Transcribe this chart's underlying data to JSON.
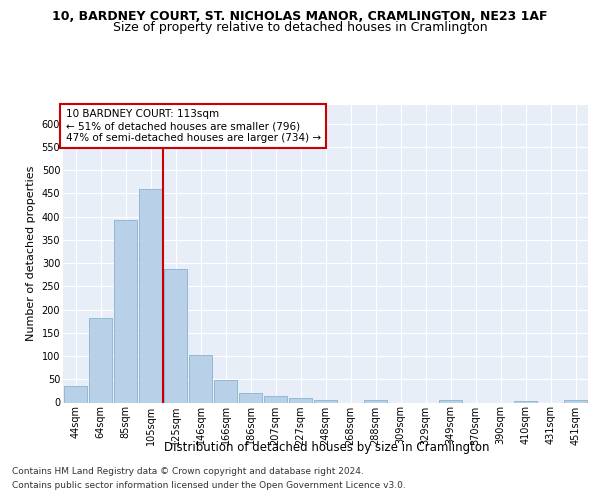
{
  "title_line1": "10, BARDNEY COURT, ST. NICHOLAS MANOR, CRAMLINGTON, NE23 1AF",
  "title_line2": "Size of property relative to detached houses in Cramlington",
  "xlabel": "Distribution of detached houses by size in Cramlington",
  "ylabel": "Number of detached properties",
  "categories": [
    "44sqm",
    "64sqm",
    "85sqm",
    "105sqm",
    "125sqm",
    "146sqm",
    "166sqm",
    "186sqm",
    "207sqm",
    "227sqm",
    "248sqm",
    "268sqm",
    "288sqm",
    "309sqm",
    "329sqm",
    "349sqm",
    "370sqm",
    "390sqm",
    "410sqm",
    "431sqm",
    "451sqm"
  ],
  "values": [
    35,
    181,
    393,
    460,
    287,
    103,
    49,
    21,
    15,
    10,
    6,
    0,
    5,
    0,
    0,
    6,
    0,
    0,
    4,
    0,
    5
  ],
  "bar_color": "#b8d0e8",
  "bar_edgecolor": "#7aaac8",
  "vline_x_index": 3,
  "vline_color": "#cc0000",
  "annotation_text": "10 BARDNEY COURT: 113sqm\n← 51% of detached houses are smaller (796)\n47% of semi-detached houses are larger (734) →",
  "annotation_box_color": "#ffffff",
  "annotation_box_edgecolor": "#cc0000",
  "ylim": [
    0,
    640
  ],
  "yticks": [
    0,
    50,
    100,
    150,
    200,
    250,
    300,
    350,
    400,
    450,
    500,
    550,
    600
  ],
  "bg_color": "#e8eef8",
  "grid_color": "#ffffff",
  "footer_line1": "Contains HM Land Registry data © Crown copyright and database right 2024.",
  "footer_line2": "Contains public sector information licensed under the Open Government Licence v3.0.",
  "title_fontsize": 9,
  "subtitle_fontsize": 9,
  "xlabel_fontsize": 8.5,
  "ylabel_fontsize": 8,
  "tick_fontsize": 7,
  "footer_fontsize": 6.5,
  "annot_fontsize": 7.5
}
